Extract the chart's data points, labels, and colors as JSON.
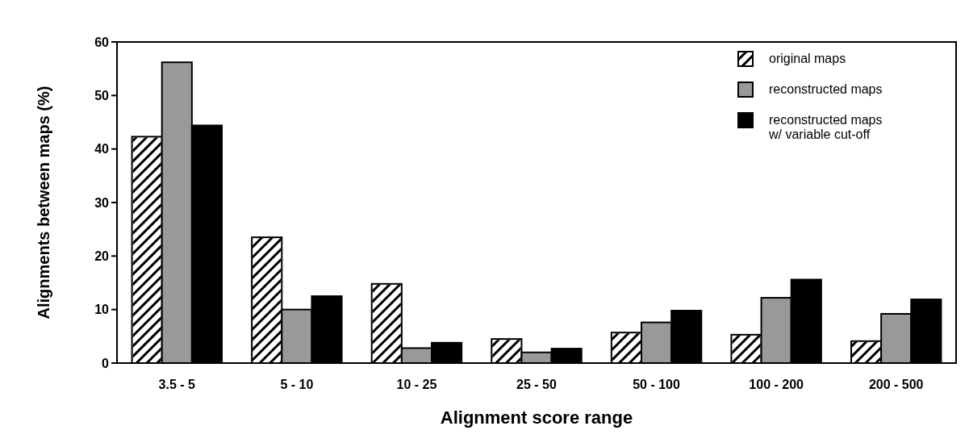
{
  "chart_data": {
    "type": "bar",
    "xlabel": "Alignment score range",
    "ylabel": "Alignments between maps (%)",
    "categories": [
      "3.5 - 5",
      "5 - 10",
      "10 - 25",
      "25 - 50",
      "50 - 100",
      "100 - 200",
      "200 - 500"
    ],
    "series": [
      {
        "name": "original maps",
        "color": "#ffffff",
        "values": [
          42.3,
          23.5,
          14.8,
          4.5,
          5.7,
          5.3,
          4.1
        ]
      },
      {
        "name": "reconstructed maps",
        "color": "#999999",
        "values": [
          56.2,
          10,
          2.8,
          2,
          7.6,
          12.2,
          9.2
        ]
      },
      {
        "name": "reconstructed maps\nw/ variable cut-off",
        "color": "#000000",
        "values": [
          44.4,
          12.5,
          3.8,
          2.7,
          9.8,
          15.6,
          11.9
        ]
      }
    ],
    "ylim": [
      0,
      60
    ],
    "yticks": [
      0,
      10,
      20,
      30,
      40,
      50,
      60
    ],
    "legend": "top right"
  }
}
